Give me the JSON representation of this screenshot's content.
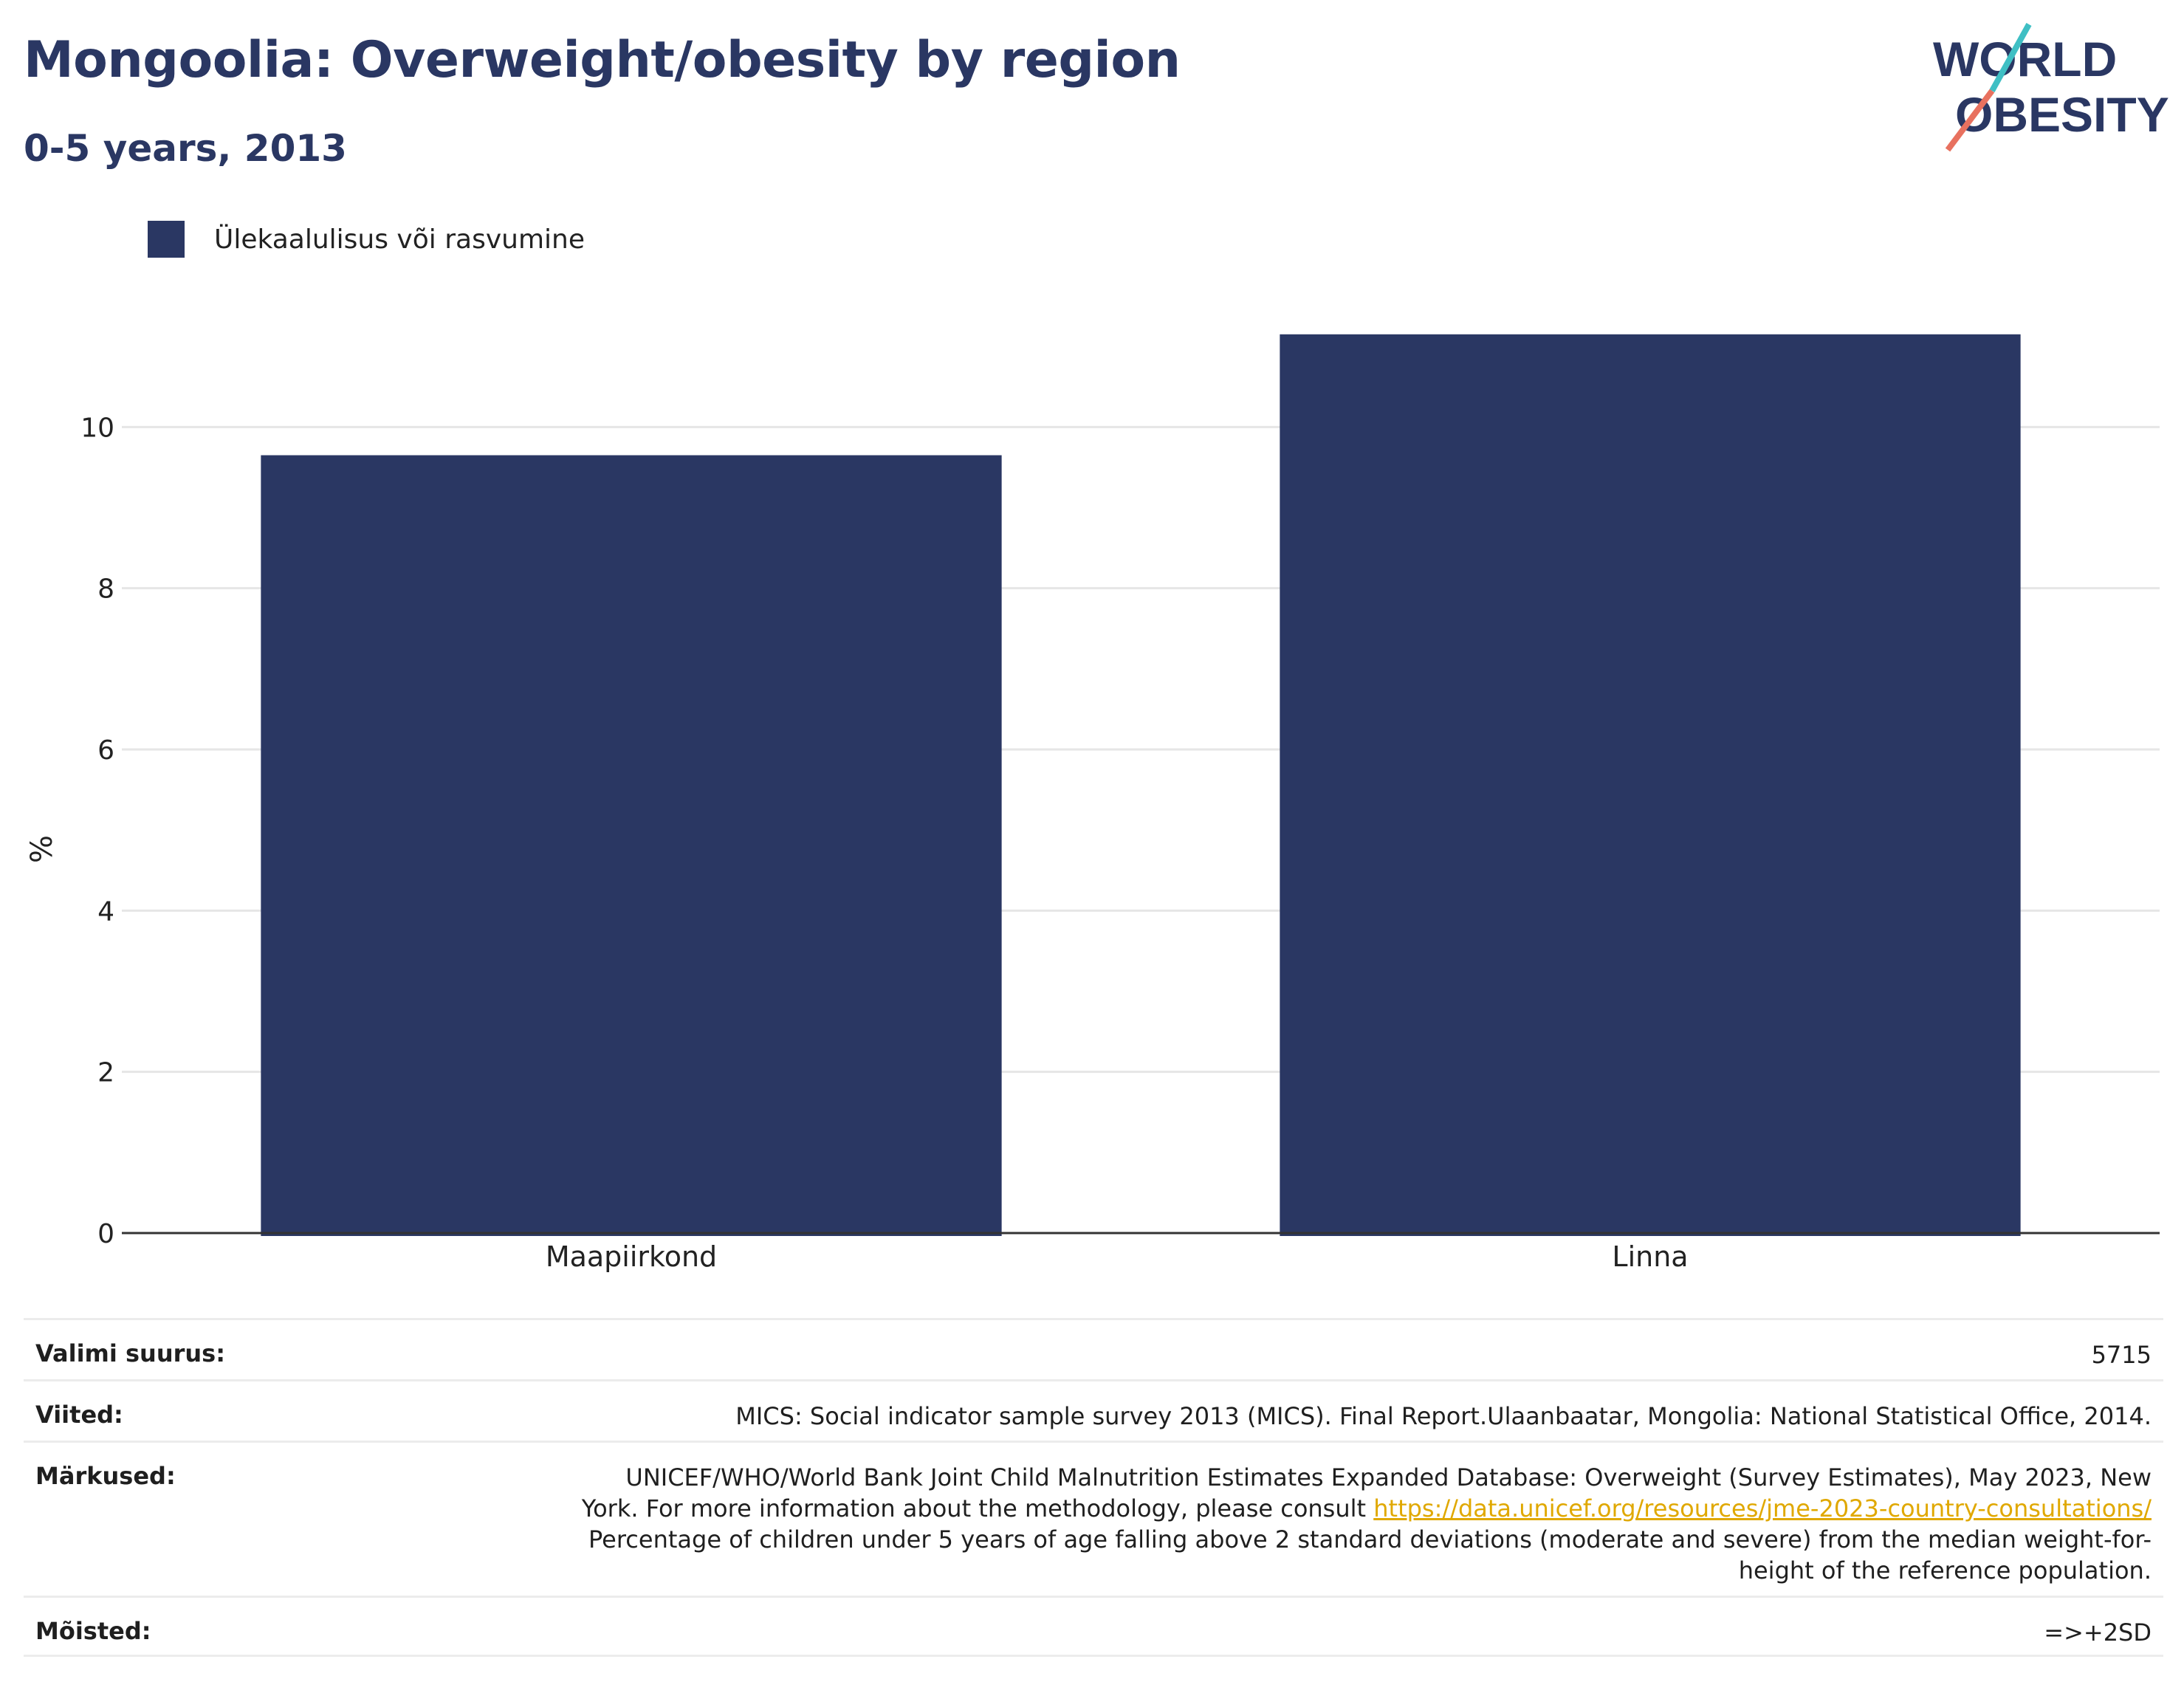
{
  "header": {
    "title": "Mongoolia: Overweight/obesity by region",
    "subtitle": "0-5 years, 2013",
    "logo_text": "WORLD OBESITY"
  },
  "legend": {
    "label": "Ülekaalulisus või rasvumine",
    "color": "#2a3763"
  },
  "chart_data": {
    "type": "bar",
    "categories": [
      "Maapiirkond",
      "Linna"
    ],
    "series": [
      {
        "name": "Ülekaalulisus või rasvumine",
        "values": [
          9.65,
          11.15
        ],
        "color": "#2a3763"
      }
    ],
    "xlabel": "",
    "ylabel": "%",
    "ylim": [
      0,
      12
    ],
    "yticks": [
      0,
      2,
      4,
      6,
      8,
      10
    ],
    "grid": true,
    "legend_position": "top-left"
  },
  "meta": {
    "sample_size_label": "Valimi suurus:",
    "sample_size_value": "5715",
    "references_label": "Viited:",
    "references_value": "MICS: Social indicator sample survey 2013 (MICS). Final Report.Ulaanbaatar, Mongolia: National Statistical Office, 2014.",
    "notes_label": "Märkused:",
    "notes_line1": "UNICEF/WHO/World Bank Joint Child Malnutrition Estimates Expanded Database: Overweight (Survey Estimates), May 2023, New",
    "notes_line2_prefix": "York. For more information about the methodology, please consult ",
    "notes_link": "https://data.unicef.org/resources/jme-2023-country-consultations/",
    "notes_line3": "Percentage of children under 5 years of age falling above 2 standard deviations (moderate and severe) from the median weight-for-",
    "notes_line4": "height of the reference population.",
    "definitions_label": "Mõisted:",
    "definitions_value": "=>+2SD"
  }
}
